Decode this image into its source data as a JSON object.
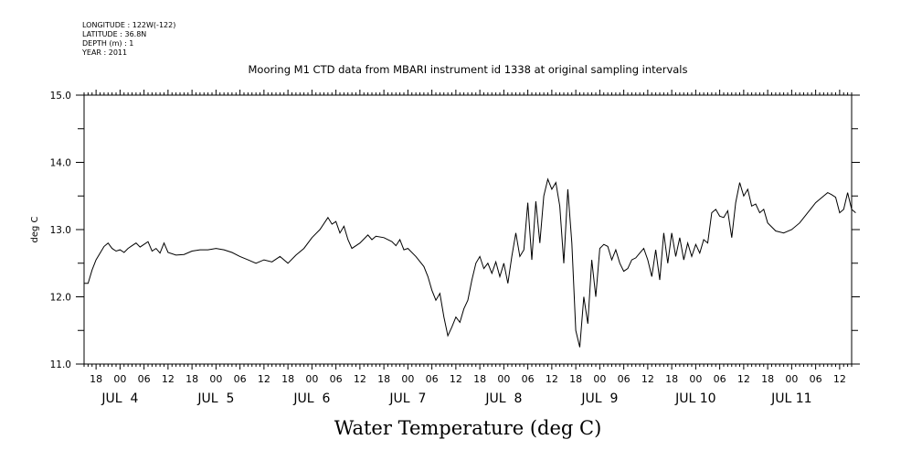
{
  "header": {
    "longitude": "LONGITUDE : 122W(-122)",
    "latitude": "LATITUDE : 36.8N",
    "depth": "DEPTH (m) : 1",
    "year": "YEAR : 2011"
  },
  "chart_data": {
    "type": "line",
    "title": "Mooring M1 CTD data from MBARI instrument id 1338 at original sampling intervals",
    "xlabel": "Water Temperature (deg C)",
    "ylabel": "deg C",
    "ylim": [
      11.0,
      15.0
    ],
    "yticks": [
      "11.0",
      "12.0",
      "13.0",
      "14.0",
      "15.0"
    ],
    "xlim": [
      "2011-07-03T15:00",
      "2011-07-11T15:00"
    ],
    "hour_tick_labels": [
      "18",
      "00",
      "06",
      "12",
      "18",
      "00",
      "06",
      "12",
      "18",
      "00",
      "06",
      "12",
      "18",
      "00",
      "06",
      "12",
      "18",
      "00",
      "06",
      "12",
      "18",
      "00",
      "06",
      "12",
      "18",
      "00",
      "06",
      "12",
      "18",
      "00",
      "06",
      "12"
    ],
    "day_tick_labels": [
      "JUL  4",
      "JUL  5",
      "JUL  6",
      "JUL  7",
      "JUL  8",
      "JUL  9",
      "JUL 10",
      "JUL 11"
    ],
    "grid": false,
    "series": [
      {
        "color": "#000000",
        "points": [
          [
            "2011-07-03T15:00",
            12.2
          ],
          [
            "2011-07-03T16:00",
            12.2
          ],
          [
            "2011-07-03T17:00",
            12.4
          ],
          [
            "2011-07-03T18:00",
            12.55
          ],
          [
            "2011-07-03T19:00",
            12.65
          ],
          [
            "2011-07-03T20:00",
            12.75
          ],
          [
            "2011-07-03T21:00",
            12.8
          ],
          [
            "2011-07-03T22:00",
            12.72
          ],
          [
            "2011-07-03T23:00",
            12.68
          ],
          [
            "2011-07-04T00:00",
            12.7
          ],
          [
            "2011-07-04T01:00",
            12.66
          ],
          [
            "2011-07-04T02:00",
            12.72
          ],
          [
            "2011-07-04T03:00",
            12.76
          ],
          [
            "2011-07-04T04:00",
            12.8
          ],
          [
            "2011-07-04T05:00",
            12.74
          ],
          [
            "2011-07-04T06:00",
            12.78
          ],
          [
            "2011-07-04T07:00",
            12.82
          ],
          [
            "2011-07-04T08:00",
            12.68
          ],
          [
            "2011-07-04T09:00",
            12.72
          ],
          [
            "2011-07-04T10:00",
            12.65
          ],
          [
            "2011-07-04T11:00",
            12.8
          ],
          [
            "2011-07-04T12:00",
            12.66
          ],
          [
            "2011-07-04T14:00",
            12.62
          ],
          [
            "2011-07-04T16:00",
            12.63
          ],
          [
            "2011-07-04T18:00",
            12.68
          ],
          [
            "2011-07-04T20:00",
            12.7
          ],
          [
            "2011-07-04T22:00",
            12.7
          ],
          [
            "2011-07-05T00:00",
            12.72
          ],
          [
            "2011-07-05T02:00",
            12.7
          ],
          [
            "2011-07-05T04:00",
            12.66
          ],
          [
            "2011-07-05T06:00",
            12.6
          ],
          [
            "2011-07-05T08:00",
            12.55
          ],
          [
            "2011-07-05T10:00",
            12.5
          ],
          [
            "2011-07-05T12:00",
            12.55
          ],
          [
            "2011-07-05T14:00",
            12.52
          ],
          [
            "2011-07-05T16:00",
            12.6
          ],
          [
            "2011-07-05T18:00",
            12.5
          ],
          [
            "2011-07-05T20:00",
            12.62
          ],
          [
            "2011-07-05T22:00",
            12.72
          ],
          [
            "2011-07-06T00:00",
            12.88
          ],
          [
            "2011-07-06T02:00",
            13.0
          ],
          [
            "2011-07-06T04:00",
            13.18
          ],
          [
            "2011-07-06T05:00",
            13.08
          ],
          [
            "2011-07-06T06:00",
            13.12
          ],
          [
            "2011-07-06T07:00",
            12.95
          ],
          [
            "2011-07-06T08:00",
            13.05
          ],
          [
            "2011-07-06T09:00",
            12.85
          ],
          [
            "2011-07-06T10:00",
            12.72
          ],
          [
            "2011-07-06T12:00",
            12.8
          ],
          [
            "2011-07-06T14:00",
            12.92
          ],
          [
            "2011-07-06T15:00",
            12.85
          ],
          [
            "2011-07-06T16:00",
            12.9
          ],
          [
            "2011-07-06T18:00",
            12.88
          ],
          [
            "2011-07-06T20:00",
            12.82
          ],
          [
            "2011-07-06T21:00",
            12.76
          ],
          [
            "2011-07-06T22:00",
            12.85
          ],
          [
            "2011-07-06T23:00",
            12.7
          ],
          [
            "2011-07-07T00:00",
            12.72
          ],
          [
            "2011-07-07T02:00",
            12.6
          ],
          [
            "2011-07-07T04:00",
            12.45
          ],
          [
            "2011-07-07T05:00",
            12.3
          ],
          [
            "2011-07-07T06:00",
            12.1
          ],
          [
            "2011-07-07T07:00",
            11.95
          ],
          [
            "2011-07-07T08:00",
            12.05
          ],
          [
            "2011-07-07T09:00",
            11.7
          ],
          [
            "2011-07-07T10:00",
            11.42
          ],
          [
            "2011-07-07T11:00",
            11.55
          ],
          [
            "2011-07-07T12:00",
            11.7
          ],
          [
            "2011-07-07T13:00",
            11.62
          ],
          [
            "2011-07-07T14:00",
            11.82
          ],
          [
            "2011-07-07T15:00",
            11.95
          ],
          [
            "2011-07-07T16:00",
            12.25
          ],
          [
            "2011-07-07T17:00",
            12.5
          ],
          [
            "2011-07-07T18:00",
            12.6
          ],
          [
            "2011-07-07T19:00",
            12.42
          ],
          [
            "2011-07-07T20:00",
            12.5
          ],
          [
            "2011-07-07T21:00",
            12.35
          ],
          [
            "2011-07-07T22:00",
            12.52
          ],
          [
            "2011-07-07T23:00",
            12.3
          ],
          [
            "2011-07-08T00:00",
            12.5
          ],
          [
            "2011-07-08T01:00",
            12.2
          ],
          [
            "2011-07-08T02:00",
            12.6
          ],
          [
            "2011-07-08T03:00",
            12.95
          ],
          [
            "2011-07-08T04:00",
            12.6
          ],
          [
            "2011-07-08T05:00",
            12.7
          ],
          [
            "2011-07-08T06:00",
            13.4
          ],
          [
            "2011-07-08T07:00",
            12.55
          ],
          [
            "2011-07-08T08:00",
            13.42
          ],
          [
            "2011-07-08T09:00",
            12.8
          ],
          [
            "2011-07-08T10:00",
            13.5
          ],
          [
            "2011-07-08T11:00",
            13.75
          ],
          [
            "2011-07-08T12:00",
            13.6
          ],
          [
            "2011-07-08T13:00",
            13.7
          ],
          [
            "2011-07-08T14:00",
            13.35
          ],
          [
            "2011-07-08T15:00",
            12.5
          ],
          [
            "2011-07-08T16:00",
            13.6
          ],
          [
            "2011-07-08T17:00",
            12.8
          ],
          [
            "2011-07-08T18:00",
            11.5
          ],
          [
            "2011-07-08T19:00",
            11.25
          ],
          [
            "2011-07-08T20:00",
            12.0
          ],
          [
            "2011-07-08T21:00",
            11.6
          ],
          [
            "2011-07-08T22:00",
            12.55
          ],
          [
            "2011-07-08T23:00",
            12.0
          ],
          [
            "2011-07-09T00:00",
            12.72
          ],
          [
            "2011-07-09T01:00",
            12.78
          ],
          [
            "2011-07-09T02:00",
            12.75
          ],
          [
            "2011-07-09T03:00",
            12.55
          ],
          [
            "2011-07-09T04:00",
            12.7
          ],
          [
            "2011-07-09T05:00",
            12.5
          ],
          [
            "2011-07-09T06:00",
            12.38
          ],
          [
            "2011-07-09T07:00",
            12.42
          ],
          [
            "2011-07-09T08:00",
            12.55
          ],
          [
            "2011-07-09T09:00",
            12.58
          ],
          [
            "2011-07-09T10:00",
            12.65
          ],
          [
            "2011-07-09T11:00",
            12.72
          ],
          [
            "2011-07-09T12:00",
            12.55
          ],
          [
            "2011-07-09T13:00",
            12.3
          ],
          [
            "2011-07-09T14:00",
            12.7
          ],
          [
            "2011-07-09T15:00",
            12.25
          ],
          [
            "2011-07-09T16:00",
            12.95
          ],
          [
            "2011-07-09T17:00",
            12.5
          ],
          [
            "2011-07-09T18:00",
            12.95
          ],
          [
            "2011-07-09T19:00",
            12.6
          ],
          [
            "2011-07-09T20:00",
            12.88
          ],
          [
            "2011-07-09T21:00",
            12.55
          ],
          [
            "2011-07-09T22:00",
            12.8
          ],
          [
            "2011-07-09T23:00",
            12.6
          ],
          [
            "2011-07-10T00:00",
            12.78
          ],
          [
            "2011-07-10T01:00",
            12.65
          ],
          [
            "2011-07-10T02:00",
            12.85
          ],
          [
            "2011-07-10T03:00",
            12.8
          ],
          [
            "2011-07-10T04:00",
            13.25
          ],
          [
            "2011-07-10T05:00",
            13.3
          ],
          [
            "2011-07-10T06:00",
            13.2
          ],
          [
            "2011-07-10T07:00",
            13.18
          ],
          [
            "2011-07-10T08:00",
            13.28
          ],
          [
            "2011-07-10T09:00",
            12.88
          ],
          [
            "2011-07-10T10:00",
            13.4
          ],
          [
            "2011-07-10T11:00",
            13.7
          ],
          [
            "2011-07-10T12:00",
            13.5
          ],
          [
            "2011-07-10T13:00",
            13.6
          ],
          [
            "2011-07-10T14:00",
            13.35
          ],
          [
            "2011-07-10T15:00",
            13.38
          ],
          [
            "2011-07-10T16:00",
            13.25
          ],
          [
            "2011-07-10T17:00",
            13.3
          ],
          [
            "2011-07-10T18:00",
            13.1
          ],
          [
            "2011-07-10T20:00",
            12.98
          ],
          [
            "2011-07-10T22:00",
            12.95
          ],
          [
            "2011-07-11T00:00",
            13.0
          ],
          [
            "2011-07-11T02:00",
            13.1
          ],
          [
            "2011-07-11T04:00",
            13.25
          ],
          [
            "2011-07-11T06:00",
            13.4
          ],
          [
            "2011-07-11T08:00",
            13.5
          ],
          [
            "2011-07-11T09:00",
            13.55
          ],
          [
            "2011-07-11T10:00",
            13.52
          ],
          [
            "2011-07-11T11:00",
            13.48
          ],
          [
            "2011-07-11T12:00",
            13.25
          ],
          [
            "2011-07-11T13:00",
            13.3
          ],
          [
            "2011-07-11T14:00",
            13.55
          ],
          [
            "2011-07-11T15:00",
            13.3
          ],
          [
            "2011-07-11T16:00",
            13.25
          ]
        ]
      }
    ]
  }
}
